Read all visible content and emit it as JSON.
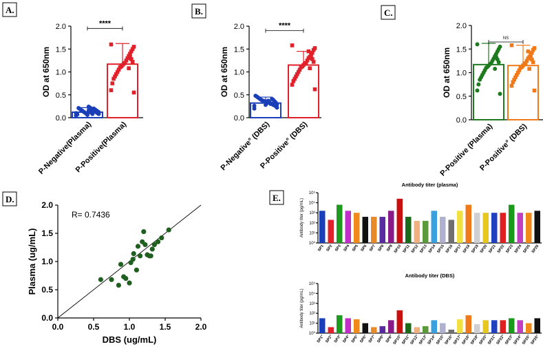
{
  "panels": {
    "A": "A.",
    "B": "B.",
    "C": "C.",
    "D": "D.",
    "E": "E."
  },
  "colors": {
    "blue": "#1a3fb8",
    "red": "#e0202a",
    "green": "#1e7a1e",
    "orange": "#f07a1a",
    "dark_green": "#1f5f1f"
  },
  "chart_data": [
    {
      "id": "A",
      "type": "bar",
      "title": "",
      "ylabel": "OD at 650nm",
      "ylim": [
        0,
        2.0
      ],
      "yticks": [
        "0.0",
        "0.5",
        "1.0",
        "1.5",
        "2.0"
      ],
      "categories": [
        "P-Negative(Plasma)",
        "P-Positive(Plasma)"
      ],
      "series": [
        {
          "name": "mean",
          "values": [
            0.12,
            1.17
          ]
        }
      ],
      "sd_top": [
        0.22,
        1.62
      ],
      "significance": "****",
      "points": [
        [
          0.05,
          0.08,
          0.1,
          0.12,
          0.14,
          0.16,
          0.18,
          0.2,
          0.22,
          0.24,
          0.06,
          0.09,
          0.11,
          0.13,
          0.15,
          0.17,
          0.19,
          0.21,
          0.07,
          0.1,
          0.12,
          0.14,
          0.16,
          0.18,
          0.2,
          0.08,
          0.11,
          0.13,
          0.15,
          0.09
        ],
        [
          1.6,
          1.55,
          1.5,
          1.45,
          1.4,
          1.35,
          1.3,
          1.25,
          1.2,
          1.18,
          1.15,
          1.12,
          1.1,
          1.05,
          1.0,
          0.95,
          0.9,
          0.85,
          0.75,
          0.6,
          0.55,
          1.22,
          1.28,
          1.33,
          1.08
        ]
      ]
    },
    {
      "id": "B",
      "type": "bar",
      "title": "",
      "ylabel": "OD at 650nm",
      "ylim": [
        0,
        2.0
      ],
      "yticks": [
        "0.0",
        "0.5",
        "1.0",
        "1.5",
        "2.0"
      ],
      "categories": [
        "P-Negative° (DBS)",
        "P-Positive° (DBS)"
      ],
      "series": [
        {
          "name": "mean",
          "values": [
            0.32,
            1.15
          ]
        }
      ],
      "sd_top": [
        0.45,
        1.45
      ],
      "significance": "****",
      "points": [
        [
          0.2,
          0.22,
          0.25,
          0.27,
          0.28,
          0.3,
          0.31,
          0.32,
          0.33,
          0.34,
          0.35,
          0.36,
          0.37,
          0.38,
          0.4,
          0.42,
          0.44,
          0.46,
          0.48,
          0.26,
          0.29,
          0.33,
          0.36,
          0.39,
          0.41,
          0.3,
          0.34,
          0.37,
          0.32,
          0.28
        ],
        [
          1.58,
          1.52,
          1.48,
          1.42,
          1.38,
          1.33,
          1.3,
          1.25,
          1.2,
          1.18,
          1.15,
          1.12,
          1.1,
          1.05,
          1.0,
          0.95,
          0.9,
          0.85,
          0.8,
          0.72,
          0.62,
          1.22,
          1.28,
          1.35,
          1.08,
          1.45
        ]
      ]
    },
    {
      "id": "C",
      "type": "bar",
      "title": "",
      "ylabel": "OD at 650nm",
      "ylim": [
        0,
        2.0
      ],
      "yticks": [
        "0.0",
        "0.5",
        "1.0",
        "1.5",
        "2.0"
      ],
      "categories": [
        "P-Positive (Plasma)",
        "P-Positive° (DBS)"
      ],
      "series": [
        {
          "name": "mean",
          "values": [
            1.17,
            1.15
          ]
        }
      ],
      "sd_top": [
        1.62,
        1.58
      ],
      "significance": "NS",
      "points": [
        [
          1.6,
          1.55,
          1.5,
          1.45,
          1.4,
          1.35,
          1.3,
          1.25,
          1.2,
          1.18,
          1.15,
          1.12,
          1.1,
          1.05,
          1.0,
          0.95,
          0.9,
          0.85,
          0.75,
          0.62,
          0.55,
          1.22,
          1.28,
          1.33,
          1.08
        ],
        [
          1.58,
          1.52,
          1.48,
          1.42,
          1.38,
          1.33,
          1.3,
          1.25,
          1.2,
          1.18,
          1.15,
          1.12,
          1.1,
          1.05,
          1.0,
          0.95,
          0.9,
          0.85,
          0.8,
          0.72,
          0.62,
          1.22,
          1.28,
          1.35,
          1.08,
          1.45
        ]
      ]
    },
    {
      "id": "D",
      "type": "scatter",
      "title": "",
      "xlabel": "DBS (ug/mL)",
      "ylabel": "Plasma (ug/mL)",
      "xlim": [
        0,
        2.0
      ],
      "ylim": [
        0,
        2.0
      ],
      "xticks": [
        "0.0",
        "0.5",
        "1.0",
        "1.5",
        "2.0"
      ],
      "yticks": [
        "0.0",
        "0.5",
        "1.0",
        "1.5",
        "2.0"
      ],
      "annotation": "R= 0.7436",
      "fit_line": [
        [
          0,
          0
        ],
        [
          2.0,
          2.0
        ]
      ],
      "x": [
        0.6,
        0.75,
        0.85,
        0.88,
        0.92,
        0.95,
        1.0,
        1.02,
        1.05,
        1.06,
        1.1,
        1.12,
        1.15,
        1.18,
        1.2,
        1.22,
        1.25,
        1.28,
        1.3,
        1.32,
        1.35,
        1.4,
        1.45,
        1.55
      ],
      "y": [
        0.68,
        0.68,
        0.58,
        0.95,
        0.73,
        0.7,
        0.62,
        0.98,
        1.04,
        1.14,
        0.85,
        1.27,
        1.1,
        1.35,
        1.53,
        1.3,
        1.12,
        1.1,
        1.1,
        1.22,
        1.3,
        1.35,
        1.42,
        1.56
      ]
    },
    {
      "id": "E1",
      "type": "bar",
      "title": "Antibody titer (plasma)",
      "ylabel": "Antibody titer (pg/mL)",
      "scale": "log",
      "yticks": [
        "10⁰",
        "10¹",
        "10²",
        "10³",
        "10⁴",
        "10⁵"
      ],
      "categories": [
        "SP1",
        "SP2",
        "SP3",
        "SP4",
        "SP5",
        "SP6",
        "SP7",
        "SP8",
        "SP9",
        "SP10",
        "SP11",
        "SP12",
        "SP13",
        "SP14",
        "SP15",
        "SP16",
        "SP17",
        "SP18",
        "SP19",
        "SP20",
        "SP21",
        "SP22",
        "SP23",
        "SP24",
        "SP25",
        "SP26"
      ],
      "values": [
        3.2,
        2.3,
        3.8,
        3.2,
        3.0,
        2.6,
        2.6,
        2.6,
        3.2,
        4.4,
        2.6,
        2.2,
        2.2,
        3.2,
        2.6,
        2.3,
        3.2,
        3.8,
        3.0,
        3.0,
        3.0,
        3.0,
        3.8,
        3.0,
        3.0,
        3.2
      ],
      "colors": [
        "#1a3fb8",
        "#e0202a",
        "#1e9a1e",
        "#c030c8",
        "#f08a1a",
        "#111111",
        "#e88a2a",
        "#5a2aa0",
        "#8a1a8a",
        "#c81010",
        "#1a6a1a",
        "#f0b080",
        "#5a9a3a",
        "#3aa0e0",
        "#b0b0d0",
        "#707070",
        "#f0e040",
        "#f07a1a",
        "#d0d0d0",
        "#e8c820",
        "#2040c0",
        "#e02020",
        "#1a9a1a",
        "#c040c0",
        "#f08a1a",
        "#111111"
      ]
    },
    {
      "id": "E2",
      "type": "bar",
      "title": "Antibody titer (DBS)",
      "ylabel": "Antibody titer (pg/mL)",
      "scale": "log",
      "yticks": [
        "10⁰",
        "10¹",
        "10²",
        "10³",
        "10⁴",
        "10⁵"
      ],
      "categories": [
        "SP1°",
        "SP2°",
        "SP3°",
        "SP4°",
        "SP5°",
        "SP6°",
        "SP7°",
        "SP8°",
        "SP9°",
        "SP10°",
        "SP11°",
        "SP12°",
        "SP13°",
        "SP14°",
        "SP15°",
        "SP16°",
        "SP17°",
        "SP18°",
        "SP19°",
        "SP20°",
        "SP21°",
        "SP22°",
        "SP23°",
        "SP24°",
        "SP25°",
        "SP26°"
      ],
      "values": [
        1.5,
        0.6,
        1.8,
        1.5,
        1.4,
        1.0,
        0.6,
        0.7,
        1.3,
        2.3,
        1.0,
        0.6,
        0.7,
        1.3,
        1.0,
        0.35,
        1.4,
        1.8,
        0.9,
        1.3,
        1.3,
        1.3,
        1.5,
        1.3,
        1.0,
        1.5
      ],
      "colors": [
        "#1a3fb8",
        "#e0202a",
        "#1e9a1e",
        "#c030c8",
        "#f08a1a",
        "#111111",
        "#e88a2a",
        "#5a2aa0",
        "#8a1a8a",
        "#c81010",
        "#1a6a1a",
        "#f0b080",
        "#5a9a3a",
        "#3aa0e0",
        "#b0b0d0",
        "#707070",
        "#f0e040",
        "#f07a1a",
        "#d0d0d0",
        "#e8c820",
        "#2040c0",
        "#e02020",
        "#1a9a1a",
        "#c040c0",
        "#f08a1a",
        "#111111"
      ]
    }
  ]
}
